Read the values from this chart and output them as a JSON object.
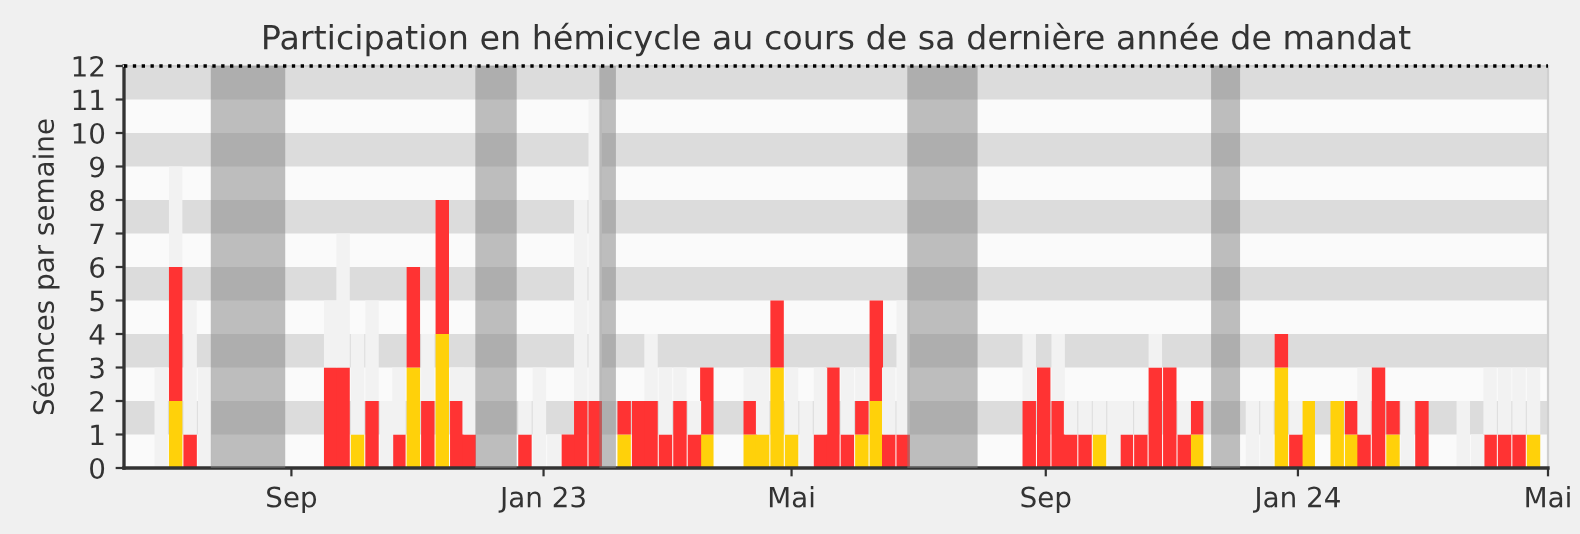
{
  "chart_data": {
    "type": "bar",
    "title": "Participation en hémicycle au cours de sa dernière année de mandat",
    "ylabel": "Séances par semaine",
    "x": [
      "2022-06-30",
      "2022-07-07",
      "2022-07-14",
      "2022-07-21",
      "2022-09-20",
      "2022-09-26",
      "2022-10-03",
      "2022-10-10",
      "2022-10-17",
      "2022-10-23",
      "2022-10-30",
      "2022-11-06",
      "2022-11-13",
      "2022-11-20",
      "2022-11-26",
      "2022-12-23",
      "2022-12-30",
      "2023-01-06",
      "2023-01-13",
      "2023-01-19",
      "2023-01-26",
      "2023-02-09",
      "2023-02-16",
      "2023-02-22",
      "2023-03-01",
      "2023-03-08",
      "2023-03-15",
      "2023-03-21",
      "2023-04-11",
      "2023-04-17",
      "2023-04-24",
      "2023-05-01",
      "2023-05-08",
      "2023-05-15",
      "2023-05-21",
      "2023-05-28",
      "2023-06-04",
      "2023-06-11",
      "2023-06-17",
      "2023-06-24",
      "2023-08-24",
      "2023-08-31",
      "2023-09-07",
      "2023-09-13",
      "2023-09-20",
      "2023-09-27",
      "2023-10-04",
      "2023-10-10",
      "2023-10-17",
      "2023-10-24",
      "2023-10-31",
      "2023-11-07",
      "2023-11-13",
      "2023-12-10",
      "2023-12-17",
      "2023-12-24",
      "2023-12-31",
      "2024-01-06",
      "2024-01-20",
      "2024-01-27",
      "2024-02-02",
      "2024-02-09",
      "2024-02-16",
      "2024-02-23",
      "2024-03-01",
      "2024-03-21",
      "2024-03-28",
      "2024-04-03",
      "2024-04-10",
      "2024-04-17",
      "2024-04-24"
    ],
    "series": [
      {
        "color": "#ffd10a",
        "values": [
          null,
          2,
          null,
          null,
          null,
          null,
          1,
          null,
          null,
          null,
          3,
          null,
          4,
          null,
          null,
          null,
          null,
          null,
          null,
          null,
          null,
          1,
          null,
          null,
          null,
          null,
          null,
          1,
          1,
          1,
          3,
          1,
          null,
          null,
          null,
          null,
          1,
          2,
          null,
          null,
          null,
          null,
          null,
          null,
          null,
          1,
          null,
          null,
          null,
          null,
          null,
          null,
          1,
          null,
          null,
          3,
          null,
          2,
          2,
          1,
          null,
          null,
          1,
          null,
          null,
          null,
          null,
          null,
          null,
          null,
          1
        ]
      },
      {
        "color": "#ff3333",
        "values": [
          null,
          4,
          1,
          null,
          3,
          3,
          null,
          2,
          null,
          1,
          3,
          2,
          4,
          2,
          1,
          1,
          null,
          null,
          1,
          2,
          2,
          1,
          2,
          2,
          1,
          2,
          1,
          2,
          1,
          null,
          2,
          null,
          null,
          1,
          3,
          1,
          1,
          3,
          1,
          1,
          2,
          3,
          2,
          1,
          1,
          null,
          null,
          1,
          1,
          3,
          3,
          1,
          1,
          null,
          null,
          1,
          1,
          null,
          null,
          1,
          1,
          3,
          1,
          null,
          2,
          null,
          null,
          1,
          1,
          1,
          null
        ]
      },
      {
        "color": "#f2f2f2",
        "values": [
          3,
          3,
          4,
          3,
          2,
          4,
          3,
          3,
          2,
          2,
          null,
          2,
          null,
          1,
          2,
          1,
          3,
          1,
          null,
          6,
          9,
          null,
          null,
          2,
          2,
          1,
          1,
          null,
          1,
          2,
          null,
          2,
          2,
          2,
          null,
          2,
          1,
          null,
          2,
          4,
          2,
          null,
          2,
          1,
          1,
          1,
          2,
          1,
          1,
          1,
          null,
          1,
          null,
          2,
          2,
          null,
          1,
          null,
          null,
          null,
          2,
          null,
          null,
          2,
          null,
          2,
          1,
          2,
          2,
          2,
          2
        ]
      }
    ],
    "stacked": true,
    "xlim": [
      "2022-06-12",
      "2024-05-01"
    ],
    "xticks": [
      {
        "value": "2022-09-01",
        "label": "Sep"
      },
      {
        "value": "2023-01-01",
        "label": "Jan 23"
      },
      {
        "value": "2023-05-01",
        "label": "Mai"
      },
      {
        "value": "2023-09-01",
        "label": "Sep"
      },
      {
        "value": "2024-01-01",
        "label": "Jan 24"
      },
      {
        "value": "2024-05-01",
        "label": "Mai"
      }
    ],
    "ylim": [
      0,
      12
    ],
    "yticks": [
      0,
      1,
      2,
      3,
      4,
      5,
      6,
      7,
      8,
      9,
      10,
      11,
      12
    ],
    "bands": [
      {
        "axis": "y",
        "from": 1,
        "to": 2,
        "color": "#dcdcdc"
      },
      {
        "axis": "y",
        "from": 3,
        "to": 4,
        "color": "#dcdcdc"
      },
      {
        "axis": "y",
        "from": 5,
        "to": 6,
        "color": "#dcdcdc"
      },
      {
        "axis": "y",
        "from": 7,
        "to": 8,
        "color": "#dcdcdc"
      },
      {
        "axis": "y",
        "from": 9,
        "to": 10,
        "color": "#dcdcdc"
      },
      {
        "axis": "y",
        "from": 11,
        "to": 12,
        "color": "#dcdcdc"
      },
      {
        "axis": "x",
        "from": "2022-07-24",
        "to": "2022-08-29",
        "color": "#808080"
      },
      {
        "axis": "x",
        "from": "2022-11-29",
        "to": "2022-12-19",
        "color": "#808080"
      },
      {
        "axis": "x",
        "from": "2023-01-28",
        "to": "2023-02-05",
        "color": "#808080"
      },
      {
        "axis": "x",
        "from": "2023-06-26",
        "to": "2023-07-30",
        "color": "#808080"
      },
      {
        "axis": "x",
        "from": "2023-11-20",
        "to": "2023-12-04",
        "color": "#808080"
      }
    ],
    "ref_lines": [
      {
        "axis": "y",
        "value": 12,
        "color": "#000000",
        "line_style": "dotted"
      }
    ],
    "grid": false,
    "legend": false
  }
}
